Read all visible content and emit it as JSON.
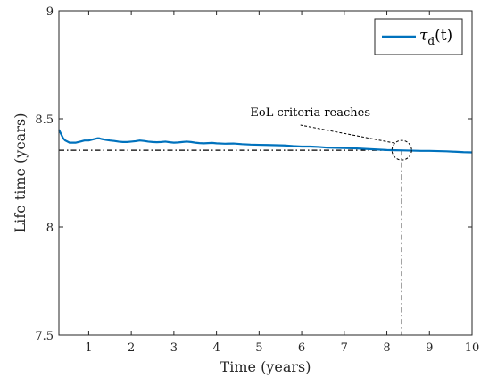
{
  "chart_data": {
    "type": "line",
    "xlabel": "Time (years)",
    "ylabel": "Life time (years)",
    "xlim": [
      0.3,
      10
    ],
    "ylim": [
      7.5,
      9
    ],
    "xticks": [
      1,
      2,
      3,
      4,
      5,
      6,
      7,
      8,
      9,
      10
    ],
    "xtick_labels": [
      "1",
      "2",
      "3",
      "4",
      "5",
      "6",
      "7",
      "8",
      "9",
      "10"
    ],
    "yticks": [
      7.5,
      8,
      8.5,
      9
    ],
    "ytick_labels": [
      "7.5",
      "8",
      "8.5",
      "9"
    ],
    "grid": false,
    "legend_position": "top-right",
    "series": [
      {
        "name": "τd(t)",
        "name_symbol": "τ",
        "name_subscript": "d",
        "name_suffix": "(t)",
        "color": "#0072BD",
        "x": [
          0.3,
          0.35,
          0.4,
          0.45,
          0.5,
          0.55,
          0.6,
          0.7,
          0.8,
          0.9,
          1.0,
          1.1,
          1.2,
          1.25,
          1.3,
          1.4,
          1.5,
          1.6,
          1.7,
          1.8,
          1.9,
          2.0,
          2.1,
          2.2,
          2.3,
          2.4,
          2.5,
          2.6,
          2.7,
          2.8,
          2.9,
          3.0,
          3.1,
          3.2,
          3.3,
          3.4,
          3.5,
          3.6,
          3.7,
          3.8,
          3.9,
          4.0,
          4.2,
          4.4,
          4.6,
          4.8,
          5.0,
          5.2,
          5.4,
          5.6,
          5.8,
          6.0,
          6.2,
          6.4,
          6.6,
          6.8,
          7.0,
          7.2,
          7.4,
          7.6,
          7.8,
          8.0,
          8.2,
          8.4,
          8.6,
          8.8,
          9.0,
          9.2,
          9.4,
          9.6,
          9.8,
          10.0
        ],
        "y": [
          8.45,
          8.43,
          8.41,
          8.4,
          8.395,
          8.39,
          8.39,
          8.39,
          8.395,
          8.4,
          8.4,
          8.405,
          8.41,
          8.41,
          8.407,
          8.403,
          8.4,
          8.398,
          8.395,
          8.393,
          8.393,
          8.395,
          8.397,
          8.4,
          8.398,
          8.395,
          8.393,
          8.392,
          8.393,
          8.395,
          8.392,
          8.39,
          8.391,
          8.393,
          8.395,
          8.393,
          8.39,
          8.388,
          8.387,
          8.388,
          8.389,
          8.387,
          8.385,
          8.386,
          8.383,
          8.381,
          8.38,
          8.379,
          8.378,
          8.377,
          8.374,
          8.372,
          8.372,
          8.37,
          8.367,
          8.366,
          8.365,
          8.364,
          8.362,
          8.36,
          8.358,
          8.356,
          8.355,
          8.354,
          8.353,
          8.352,
          8.352,
          8.351,
          8.35,
          8.348,
          8.346,
          8.345
        ]
      }
    ],
    "reference_lines": {
      "y_value": 8.355,
      "x_value": 8.35,
      "style": "dash-dot",
      "color": "#000000"
    },
    "annotation": {
      "text": "EoL criteria reaches",
      "point": [
        8.35,
        8.355
      ],
      "text_anchor_data": [
        5.05,
        8.5
      ]
    }
  }
}
